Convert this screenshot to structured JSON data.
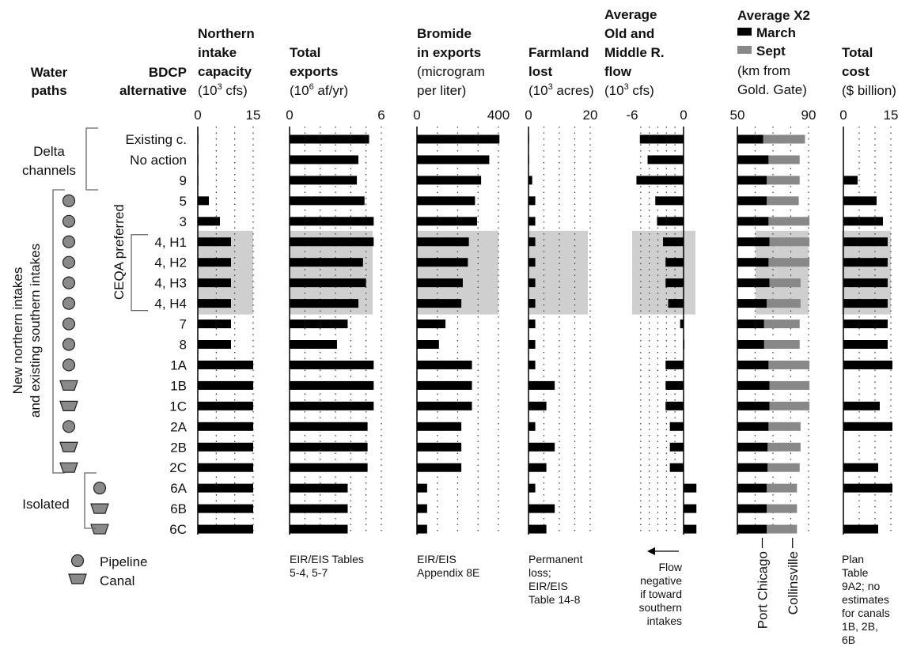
{
  "chart_data": {
    "type": "bar",
    "row_header": [
      "BDCP",
      "alternative"
    ],
    "water_paths_header": [
      "Water",
      "paths"
    ],
    "categories": [
      "Existing c.",
      "No action",
      "9",
      "5",
      "3",
      "4, H1",
      "4, H2",
      "4, H3",
      "4, H4",
      "7",
      "8",
      "1A",
      "1B",
      "1C",
      "2A",
      "2B",
      "2C",
      "6A",
      "6B",
      "6C"
    ],
    "water_paths": [
      "",
      "",
      "",
      "pipeline",
      "pipeline",
      "pipeline",
      "pipeline",
      "pipeline",
      "pipeline",
      "pipeline",
      "pipeline",
      "pipeline",
      "canal",
      "canal",
      "pipeline",
      "canal",
      "canal",
      "pipeline",
      "canal",
      "canal"
    ],
    "groups": [
      {
        "label": "Delta channels",
        "rows": [
          0,
          2
        ]
      },
      {
        "label": "New northern intakes and existing southern intakes",
        "rows": [
          3,
          16
        ]
      },
      {
        "label": "Isolated",
        "rows": [
          17,
          19
        ]
      }
    ],
    "highlight": {
      "label": "CEQA preferred",
      "rows": [
        5,
        8
      ]
    },
    "legend": [
      {
        "icon": "pipeline",
        "label": "Pipeline"
      },
      {
        "icon": "canal",
        "label": "Canal"
      }
    ],
    "panels": [
      {
        "key": "intake",
        "title": [
          "Northern",
          "intake",
          "capacity"
        ],
        "unit_parts": [
          "(10",
          "3",
          " cfs)"
        ],
        "xlim": [
          0,
          15
        ],
        "tick_labels": [
          0,
          15
        ],
        "gridlines": [
          5,
          10,
          15
        ],
        "values": [
          0,
          0,
          0,
          3,
          6,
          9,
          9,
          9,
          9,
          9,
          9,
          15,
          15,
          15,
          15,
          15,
          15,
          15,
          15,
          15
        ],
        "note": []
      },
      {
        "key": "exports",
        "title": [
          "Total",
          "exports"
        ],
        "unit_parts": [
          "(10",
          "6",
          " af/yr)"
        ],
        "xlim": [
          0,
          6
        ],
        "tick_labels": [
          0,
          6
        ],
        "gridlines": [
          1,
          2,
          3,
          4,
          5,
          6
        ],
        "values": [
          5.2,
          4.5,
          4.4,
          4.9,
          5.5,
          5.5,
          4.8,
          5.0,
          4.5,
          3.8,
          3.1,
          5.5,
          5.5,
          5.5,
          5.1,
          5.1,
          5.1,
          3.8,
          3.8,
          3.8
        ],
        "note": [
          "EIR/EIS Tables",
          "5-4, 5-7"
        ]
      },
      {
        "key": "bromide",
        "title": [
          "Bromide",
          "in exports"
        ],
        "unit_parts": [
          "(microgram",
          "",
          "",
          "per liter)"
        ],
        "xlim": [
          0,
          400
        ],
        "tick_labels": [
          0,
          400
        ],
        "gridlines": [
          100,
          200,
          300,
          400
        ],
        "values": [
          405,
          355,
          315,
          285,
          295,
          255,
          250,
          225,
          218,
          140,
          108,
          270,
          270,
          270,
          218,
          218,
          218,
          50,
          50,
          50
        ],
        "note": [
          "EIR/EIS",
          "Appendix 8E"
        ]
      },
      {
        "key": "farmland",
        "title": [
          "Farmland",
          "lost"
        ],
        "unit_parts": [
          "(10",
          "3",
          " acres)"
        ],
        "xlim": [
          0,
          20
        ],
        "tick_labels": [
          0,
          20
        ],
        "gridlines": [
          5,
          10,
          15,
          20
        ],
        "values": [
          0,
          0,
          1.2,
          2.2,
          2.2,
          2.2,
          2.2,
          2.2,
          2.2,
          2.2,
          2.2,
          2.2,
          8.5,
          5.8,
          2.2,
          8.5,
          5.8,
          2.2,
          8.5,
          5.8
        ],
        "note": [
          "Permanent",
          "loss;",
          "EIR/EIS",
          "Table 14-8"
        ]
      },
      {
        "key": "flow",
        "title": [
          "Average",
          "Old and",
          "Middle R.",
          "flow"
        ],
        "unit_parts": [
          "(10",
          "3",
          " cfs)"
        ],
        "xlim": [
          -6,
          0
        ],
        "tick_labels": [
          -6,
          0
        ],
        "gridlines": [
          -5,
          -4,
          -3,
          -2,
          -1
        ],
        "values": [
          -5.1,
          -4.2,
          -5.5,
          -3.3,
          -3.1,
          -2.4,
          -2.1,
          -2.1,
          -1.8,
          -0.4,
          0.1,
          -2.1,
          -2.1,
          -2.1,
          -1.6,
          -1.6,
          -1.6,
          1.5,
          1.5,
          1.5
        ],
        "note": [
          "Flow",
          "negative",
          "if toward",
          "southern",
          "intakes"
        ]
      },
      {
        "key": "x2",
        "title": [
          "Average X2"
        ],
        "legend": [
          {
            "name": "March",
            "color": "#000000"
          },
          {
            "name": "Sept",
            "color": "#888888"
          }
        ],
        "unit_lines": [
          "(km from",
          "Gold. Gate)"
        ],
        "xlim": [
          50,
          90
        ],
        "tick_labels": [
          50,
          90
        ],
        "gridlines": [
          60,
          70,
          80,
          90
        ],
        "series": [
          {
            "name": "March",
            "values": [
              64.5,
              67.5,
              66.5,
              66.5,
              67.5,
              68.0,
              67.5,
              68.0,
              66.5,
              65.0,
              65.0,
              67.5,
              68.0,
              68.0,
              67.5,
              67.0,
              67.0,
              66.5,
              66.5,
              66.5
            ]
          },
          {
            "name": "Sept",
            "values": [
              88.0,
              85.0,
              85.0,
              84.5,
              90.5,
              90.5,
              90.5,
              85.5,
              85.5,
              85.0,
              85.0,
              90.5,
              90.5,
              90.5,
              85.5,
              85.5,
              85.0,
              83.5,
              83.5,
              83.5
            ]
          }
        ],
        "reference_lines": [
          {
            "label": "Port Chicago",
            "value": 64
          },
          {
            "label": "Collinsville",
            "value": 81
          }
        ]
      },
      {
        "key": "cost",
        "title": [
          "Total",
          "cost"
        ],
        "unit_parts": [
          "($ billion)"
        ],
        "xlim": [
          0,
          15
        ],
        "tick_labels": [
          0,
          15
        ],
        "gridlines": [
          5,
          10,
          15
        ],
        "values": [
          null,
          null,
          4.5,
          10.5,
          12.5,
          14.0,
          14.0,
          14.0,
          14.0,
          14.0,
          14.0,
          15.5,
          null,
          11.5,
          15.5,
          null,
          11.0,
          15.5,
          null,
          11.0
        ],
        "note": [
          "Plan",
          "Table",
          "9A2; no",
          "estimates",
          "for canals",
          "1B, 2B,",
          "6B"
        ]
      }
    ]
  }
}
